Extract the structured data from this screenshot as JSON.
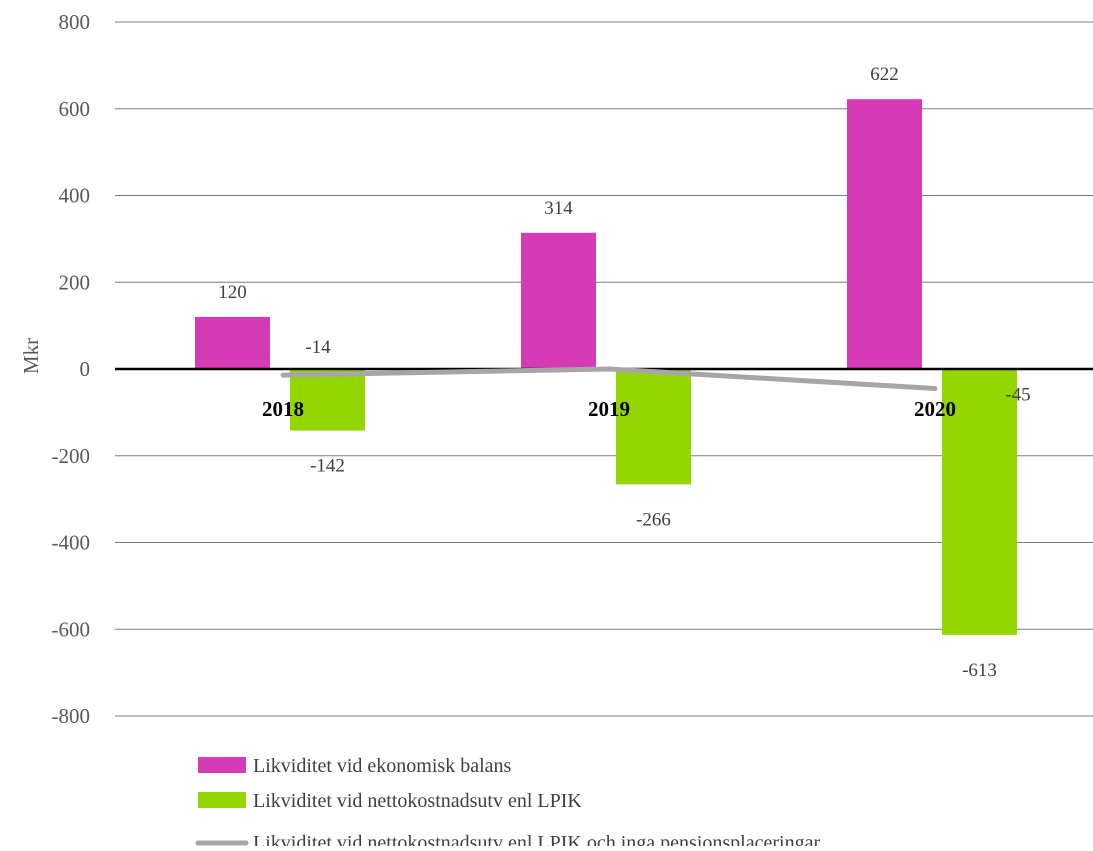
{
  "chart_data": {
    "type": "bar",
    "title": "",
    "xlabel": "",
    "ylabel": "Mkr",
    "ylim": [
      -800,
      800
    ],
    "yticks": [
      800,
      600,
      400,
      200,
      0,
      -200,
      -400,
      -600,
      -800
    ],
    "ytick_labels": [
      "800",
      "600",
      "400",
      "200",
      "0",
      "-200",
      "-400",
      "-600",
      "-800"
    ],
    "categories": [
      "2018",
      "2019",
      "2020"
    ],
    "grid": true,
    "legend_position": "bottom",
    "series": [
      {
        "name": "Likviditet vid ekonomisk balans",
        "kind": "bar",
        "color": "#d63bb6",
        "values": [
          120,
          314,
          622
        ],
        "labels": [
          "120",
          "314",
          "622"
        ]
      },
      {
        "name": "Likviditet vid nettokostnadsutv enl LPIK",
        "kind": "bar",
        "color": "#94d600",
        "values": [
          -142,
          -266,
          -613
        ],
        "labels": [
          "-142",
          "-266",
          "-613"
        ]
      },
      {
        "name": "Likviditet vid nettokostnadsutv enl LPIK och inga pensionsplaceringar",
        "kind": "line",
        "color": "#a6a6a6",
        "values": [
          -14,
          0,
          -45
        ],
        "labels": [
          "-14",
          "",
          "-45"
        ]
      }
    ]
  }
}
